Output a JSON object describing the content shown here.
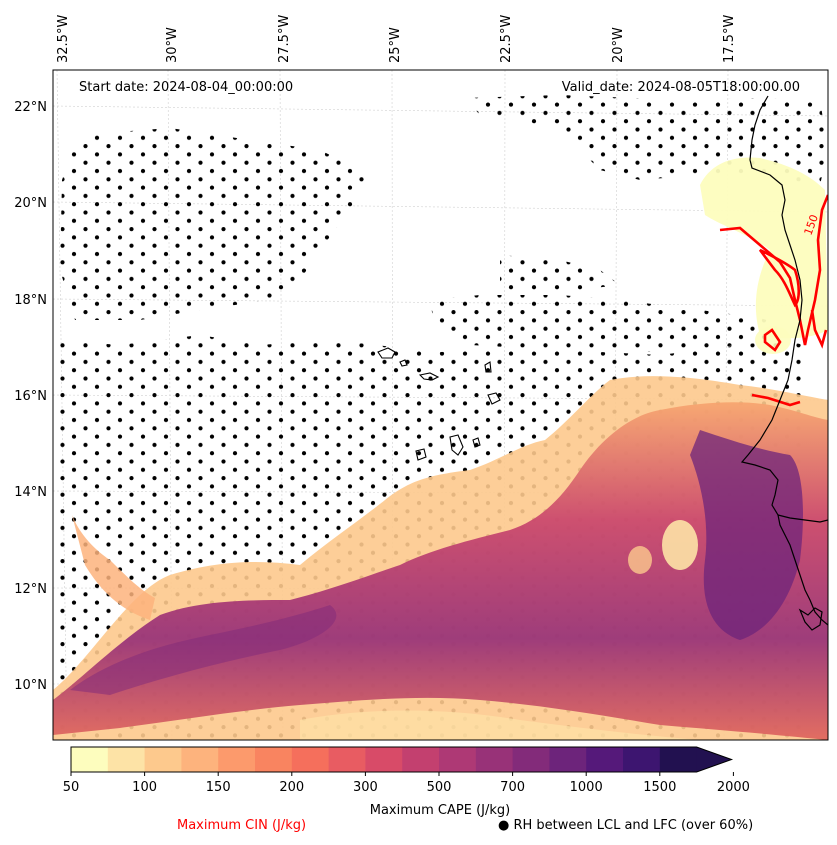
{
  "header": {
    "start_date": "Start date: 2024-08-04_00:00:00",
    "valid_date": "Valid_date: 2024-08-05T18:00:00.00"
  },
  "axes": {
    "lon_labels": [
      "32.5°W",
      "30°W",
      "27.5°W",
      "25°W",
      "22.5°W",
      "20°W",
      "17.5°W"
    ],
    "lat_labels": [
      "22°N",
      "20°N",
      "18°N",
      "16°N",
      "14°N",
      "12°N",
      "10°N"
    ]
  },
  "contour_label": "150",
  "colorbar": {
    "title": "Maximum CAPE (J/kg)",
    "ticks": [
      "50",
      "100",
      "150",
      "200",
      "300",
      "500",
      "700",
      "1000",
      "1500",
      "2000"
    ],
    "colors": [
      "#fdfdbe",
      "#fde3a6",
      "#fdc98d",
      "#fdb37d",
      "#fc9a6c",
      "#f98460",
      "#f56f5c",
      "#e85c62",
      "#d84b68",
      "#c3406f",
      "#ae3975",
      "#983278",
      "#832b7a",
      "#6d247b",
      "#55197a",
      "#3d1570",
      "#221150"
    ]
  },
  "legend": {
    "cin_label": "Maximum CIN (J/kg)",
    "cin_color": "#ff0000",
    "rh_label": "● RH between LCL and LFC (over 60%)"
  }
}
